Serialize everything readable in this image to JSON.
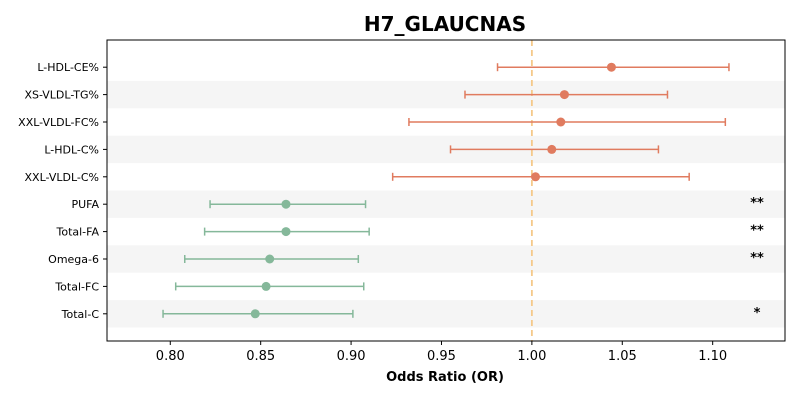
{
  "chart_data": {
    "type": "forest",
    "title": "H7_GLAUCNAS",
    "xlabel": "Odds Ratio (OR)",
    "xlim": [
      0.765,
      1.14
    ],
    "xticks": [
      0.8,
      0.85,
      0.9,
      0.95,
      1.0,
      1.05,
      1.1
    ],
    "xtick_labels": [
      "0.80",
      "0.85",
      "0.90",
      "0.95",
      "1.00",
      "1.05",
      "1.10"
    ],
    "reference_line": 1.0,
    "colors": {
      "positive": "#e07b5f",
      "negative": "#85b89a",
      "reference": "#f5c98a",
      "band": "#f5f5f5"
    },
    "rows": [
      {
        "label": "L-HDL-CE%",
        "or": 1.044,
        "lower": 0.981,
        "upper": 1.109,
        "sig": ""
      },
      {
        "label": "XS-VLDL-TG%",
        "or": 1.018,
        "lower": 0.963,
        "upper": 1.075,
        "sig": ""
      },
      {
        "label": "XXL-VLDL-FC%",
        "or": 1.016,
        "lower": 0.932,
        "upper": 1.107,
        "sig": ""
      },
      {
        "label": "L-HDL-C%",
        "or": 1.011,
        "lower": 0.955,
        "upper": 1.07,
        "sig": ""
      },
      {
        "label": "XXL-VLDL-C%",
        "or": 1.002,
        "lower": 0.923,
        "upper": 1.087,
        "sig": ""
      },
      {
        "label": "PUFA",
        "or": 0.864,
        "lower": 0.822,
        "upper": 0.908,
        "sig": "**"
      },
      {
        "label": "Total-FA",
        "or": 0.864,
        "lower": 0.819,
        "upper": 0.91,
        "sig": "**"
      },
      {
        "label": "Omega-6",
        "or": 0.855,
        "lower": 0.808,
        "upper": 0.904,
        "sig": "**"
      },
      {
        "label": "Total-FC",
        "or": 0.853,
        "lower": 0.803,
        "upper": 0.907,
        "sig": ""
      },
      {
        "label": "Total-C",
        "or": 0.847,
        "lower": 0.796,
        "upper": 0.901,
        "sig": "*"
      }
    ]
  }
}
